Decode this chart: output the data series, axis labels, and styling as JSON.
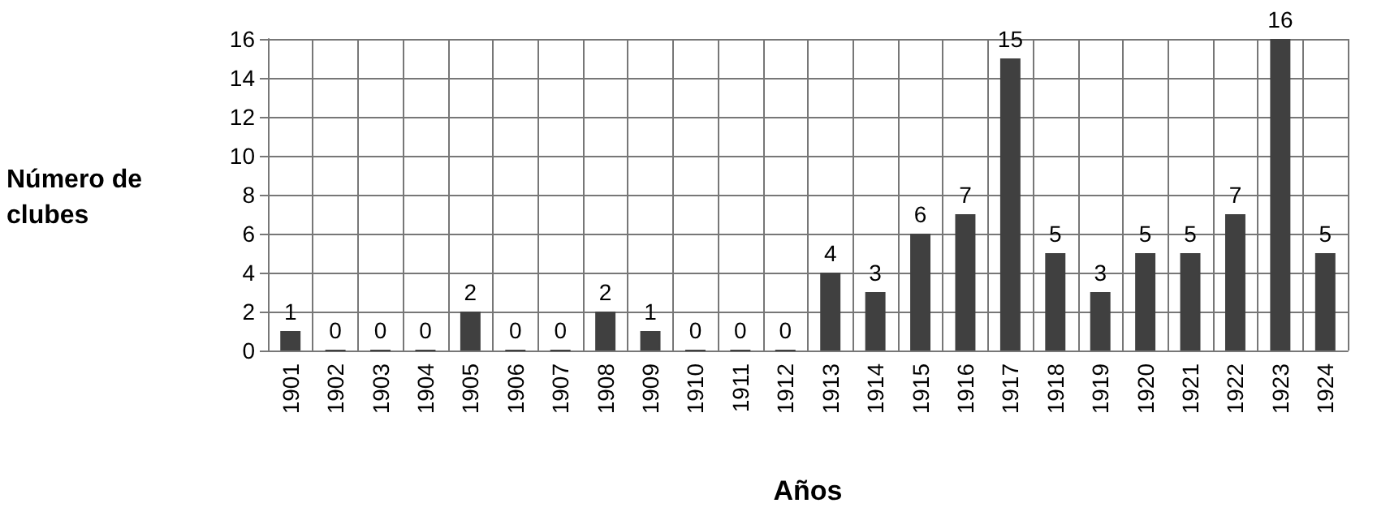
{
  "chart_data": {
    "type": "bar",
    "xlabel": "Años",
    "ylabel": "Número de clubes",
    "categories": [
      "1901",
      "1902",
      "1903",
      "1904",
      "1905",
      "1906",
      "1907",
      "1908",
      "1909",
      "1910",
      "1911",
      "1912",
      "1913",
      "1914",
      "1915",
      "1916",
      "1917",
      "1918",
      "1919",
      "1920",
      "1921",
      "1922",
      "1923",
      "1924"
    ],
    "values": [
      1,
      0,
      0,
      0,
      2,
      0,
      0,
      2,
      1,
      0,
      0,
      0,
      4,
      3,
      6,
      7,
      15,
      5,
      3,
      5,
      5,
      7,
      16,
      5
    ],
    "color": "#404040",
    "ylim": [
      0,
      16
    ],
    "yticks": [
      0,
      2,
      4,
      6,
      8,
      10,
      12,
      14,
      16
    ],
    "grid": true,
    "data_labels": true
  }
}
